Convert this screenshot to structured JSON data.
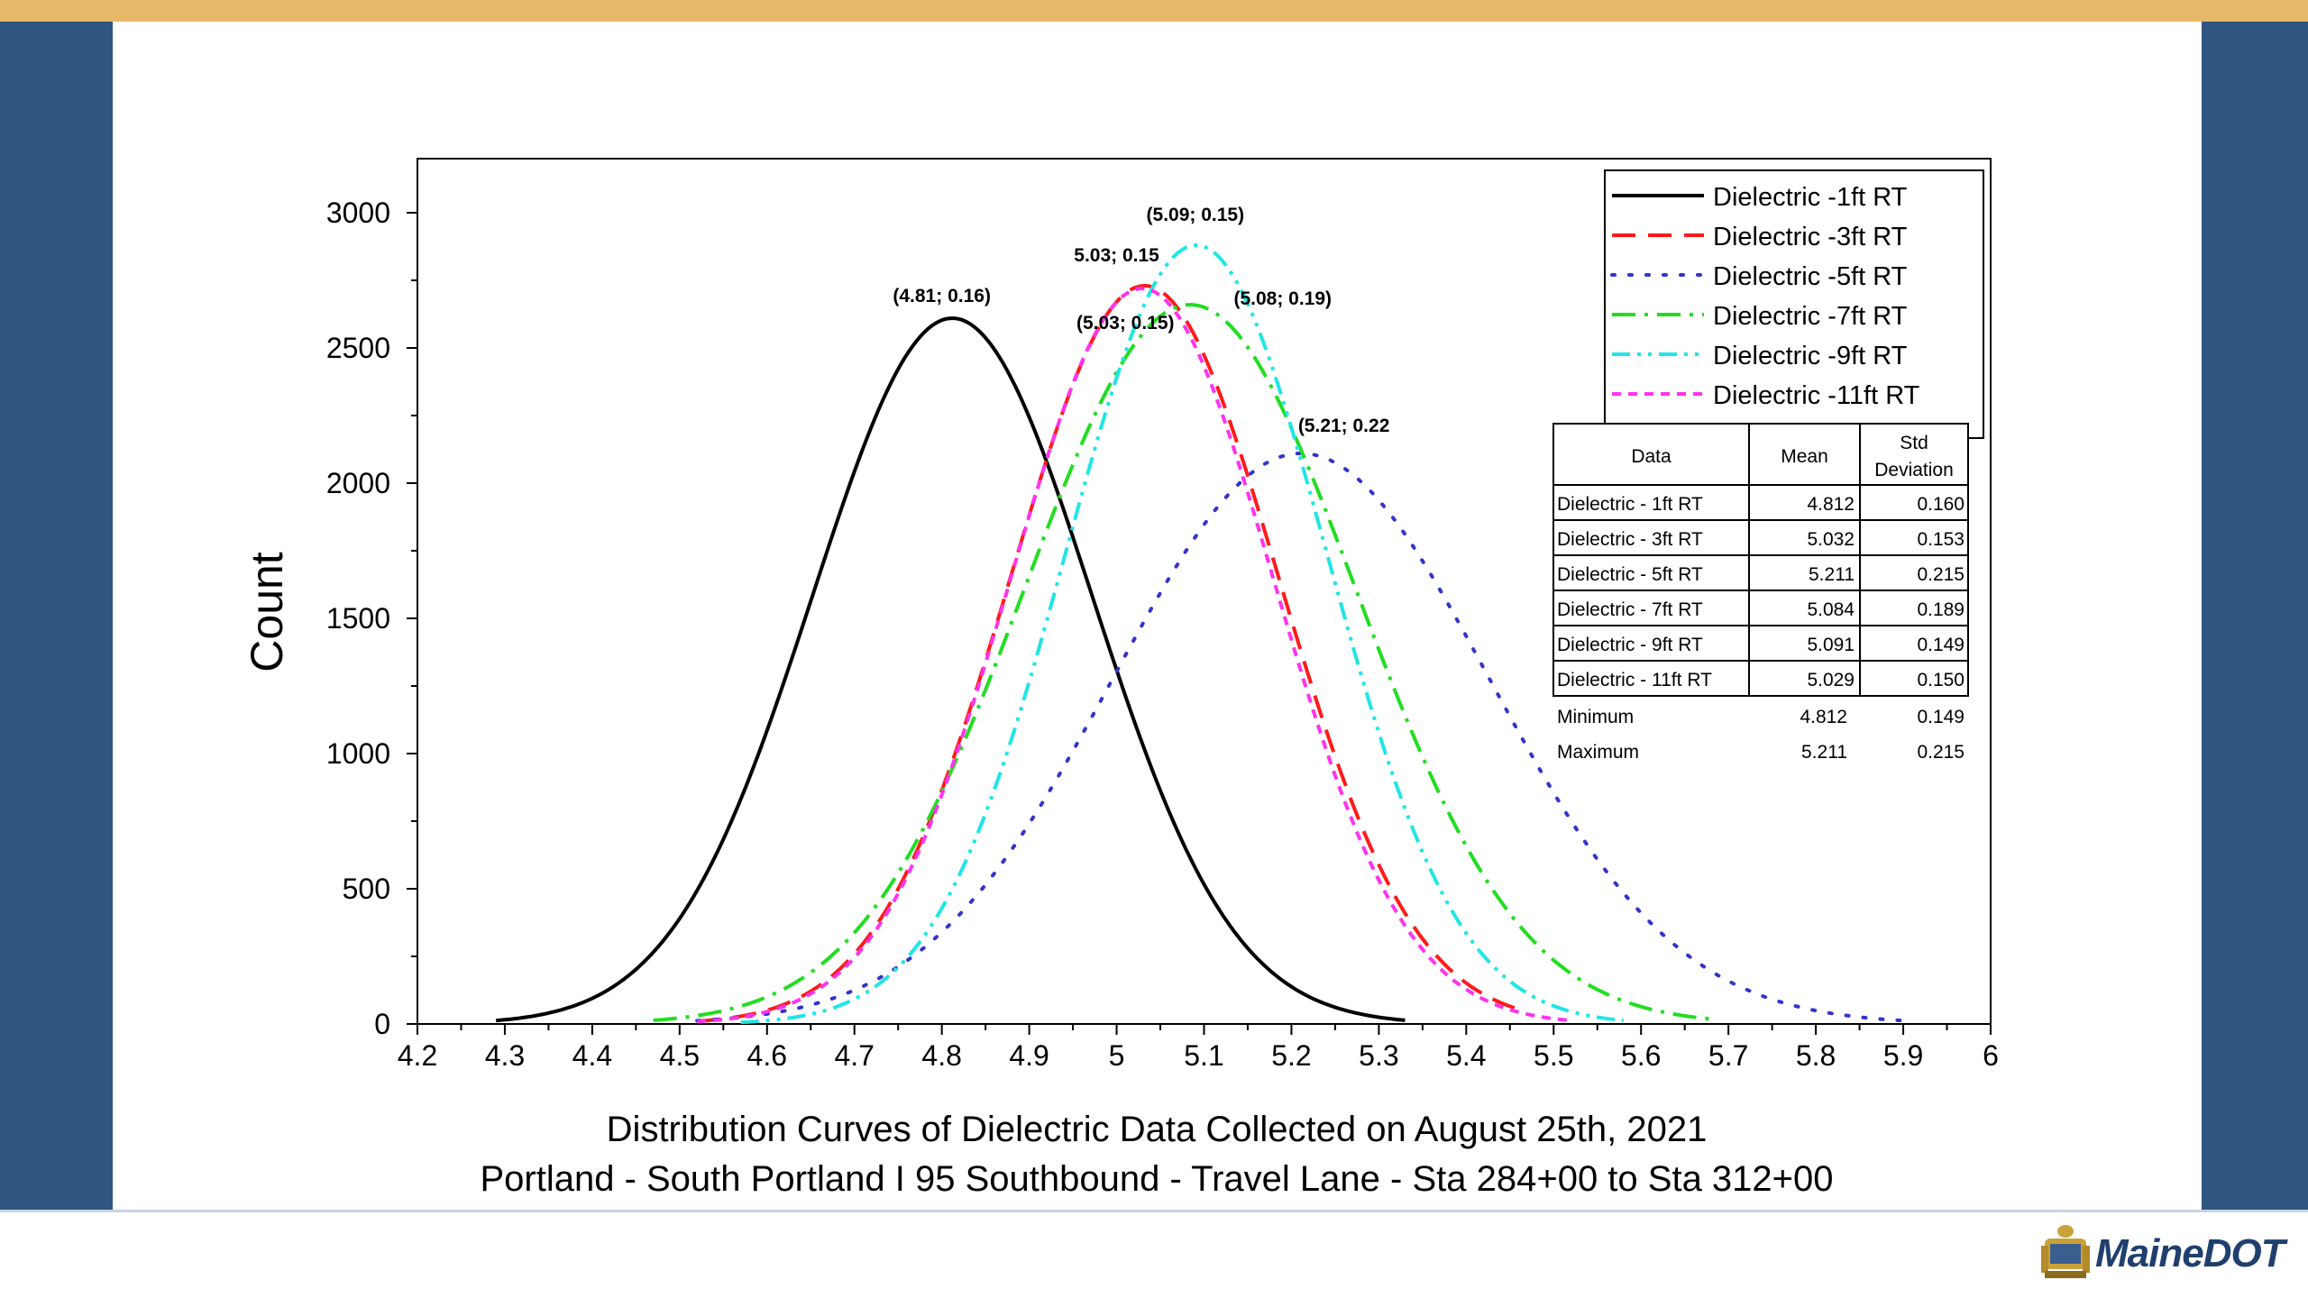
{
  "logo": {
    "text": "MaineDOT",
    "icon": "maine-seal-icon"
  },
  "colors": {
    "top_bar": "#e7b867",
    "side_panels": "#2f5580"
  },
  "chart_data": {
    "type": "line",
    "ylabel": "Count",
    "xlabel_lines": [
      "Distribution Curves of Dielectric Data Collected on August 25th, 2021",
      "Portland - South Portland I 95 Southbound - Travel Lane - Sta 284+00 to Sta 312+00"
    ],
    "xlim": [
      4.2,
      6
    ],
    "ylim": [
      0,
      3200
    ],
    "x_ticks": [
      "4.2",
      "4.3",
      "4.4",
      "4.5",
      "4.6",
      "4.7",
      "4.8",
      "4.9",
      "5",
      "5.1",
      "5.2",
      "5.3",
      "5.4",
      "5.5",
      "5.6",
      "5.7",
      "5.8",
      "5.9",
      "6"
    ],
    "y_ticks": [
      "0",
      "500",
      "1000",
      "1500",
      "2000",
      "2500",
      "3000"
    ],
    "legend_position": "top-right",
    "series": [
      {
        "name": "Dielectric -1ft RT",
        "mean": 4.812,
        "sd": 0.16,
        "peak": 2610,
        "x_range": [
          4.29,
          5.33
        ],
        "color": "#000000",
        "dash": "solid"
      },
      {
        "name": "Dielectric -3ft RT",
        "mean": 5.032,
        "sd": 0.153,
        "peak": 2730,
        "x_range": [
          4.52,
          5.46
        ],
        "color": "#ff1a1a",
        "dash": "dash"
      },
      {
        "name": "Dielectric -5ft RT",
        "mean": 5.211,
        "sd": 0.215,
        "peak": 2110,
        "x_range": [
          4.52,
          5.9
        ],
        "color": "#3333cc",
        "dash": "dot"
      },
      {
        "name": "Dielectric -7ft RT",
        "mean": 5.084,
        "sd": 0.189,
        "peak": 2660,
        "x_range": [
          4.47,
          5.68
        ],
        "color": "#22dd22",
        "dash": "dashdot"
      },
      {
        "name": "Dielectric -9ft RT",
        "mean": 5.091,
        "sd": 0.149,
        "peak": 2880,
        "x_range": [
          4.57,
          5.58
        ],
        "color": "#22e5e5",
        "dash": "dashdotdot"
      },
      {
        "name": "Dielectric -11ft RT",
        "mean": 5.029,
        "sd": 0.15,
        "peak": 2720,
        "x_range": [
          4.52,
          5.52
        ],
        "color": "#ff33ee",
        "dash": "shortdash"
      }
    ],
    "annotations": [
      {
        "text": "(4.81; 0.16)",
        "x": 4.8,
        "y": 2670
      },
      {
        "text": "5.03; 0.15",
        "x": 5.0,
        "y": 2820
      },
      {
        "text": "(5.09; 0.15)",
        "x": 5.09,
        "y": 2970
      },
      {
        "text": "(5.08; 0.19)",
        "x": 5.19,
        "y": 2660
      },
      {
        "text": "(5.03; 0.15)",
        "x": 5.01,
        "y": 2570
      },
      {
        "text": "(5.21; 0.22",
        "x": 5.26,
        "y": 2190
      }
    ],
    "stats_table": {
      "headers": [
        "Data",
        "Mean",
        "Std Deviation"
      ],
      "rows": [
        [
          "Dielectric - 1ft RT",
          "4.812",
          "0.160"
        ],
        [
          "Dielectric - 3ft RT",
          "5.032",
          "0.153"
        ],
        [
          "Dielectric - 5ft RT",
          "5.211",
          "0.215"
        ],
        [
          "Dielectric - 7ft RT",
          "5.084",
          "0.189"
        ],
        [
          "Dielectric - 9ft RT",
          "5.091",
          "0.149"
        ],
        [
          "Dielectric - 11ft RT",
          "5.029",
          "0.150"
        ]
      ],
      "summary": [
        [
          "Minimum",
          "4.812",
          "0.149"
        ],
        [
          "Maximum",
          "5.211",
          "0.215"
        ]
      ]
    }
  }
}
